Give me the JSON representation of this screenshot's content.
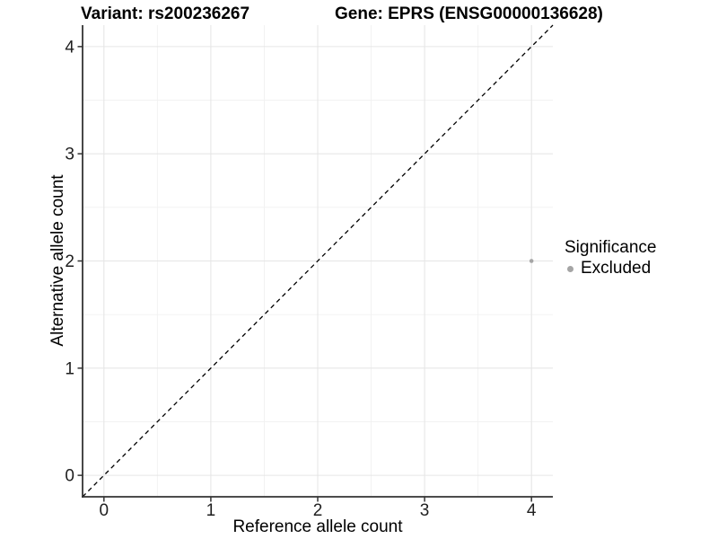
{
  "titles": {
    "variant": "Variant: rs200236267",
    "gene": "Gene: EPRS (ENSG00000136628)"
  },
  "legend": {
    "title": "Significance",
    "items": [
      {
        "label": "Excluded",
        "color": "#a5a5a5",
        "marker": "circle"
      }
    ]
  },
  "chart_data": {
    "type": "scatter",
    "title": "Variant: rs200236267    Gene: EPRS (ENSG00000136628)",
    "xlabel": "Reference allele count",
    "ylabel": "Alternative allele count",
    "xlim": [
      -0.2,
      4.2
    ],
    "ylim": [
      -0.2,
      4.2
    ],
    "xticks": [
      0,
      1,
      2,
      3,
      4
    ],
    "yticks": [
      0,
      1,
      2,
      3,
      4
    ],
    "xticks_minor": [
      0.5,
      1.5,
      2.5,
      3.5
    ],
    "yticks_minor": [
      0.5,
      1.5,
      2.5,
      3.5
    ],
    "grid": "major+minor",
    "legend_position": "right",
    "series": [
      {
        "name": "Excluded",
        "color": "#a5a5a5",
        "points": [
          {
            "x": 4,
            "y": 2
          }
        ]
      }
    ],
    "reference_line": {
      "type": "identity",
      "equation": "y = x",
      "style": "dashed",
      "color": "#000000"
    },
    "colors": {
      "background": "#ffffff",
      "grid_major": "#e6e6e6",
      "grid_minor": "#f1f1f1",
      "axis_line": "#333333",
      "tick_mark": "#333333",
      "tick_label": "#1f1f1f",
      "axis_title": "#000000",
      "point": "#a5a5a5"
    }
  }
}
